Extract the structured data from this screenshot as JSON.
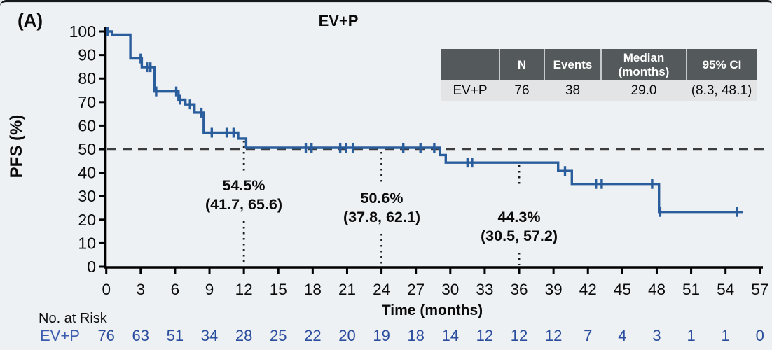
{
  "panel_label": "(A)",
  "title": "EV+P",
  "y_axis": {
    "label": "PFS (%)",
    "ticks": [
      "100",
      "90",
      "80",
      "70",
      "60",
      "50",
      "40",
      "30",
      "20",
      "10",
      "0"
    ]
  },
  "x_axis": {
    "label": "Time (months)",
    "ticks": [
      "0",
      "3",
      "6",
      "9",
      "12",
      "15",
      "18",
      "21",
      "24",
      "27",
      "30",
      "33",
      "36",
      "39",
      "42",
      "45",
      "48",
      "51",
      "54",
      "57"
    ]
  },
  "summary_table": {
    "headers": [
      "",
      "N",
      "Events",
      "Median (months)",
      "95% CI"
    ],
    "rows": [
      {
        "group": "EV+P",
        "n": "76",
        "events": "38",
        "median": "29.0",
        "ci": "(8.3, 48.1)"
      }
    ]
  },
  "annotations": [
    {
      "month": 12,
      "rate": "54.5%",
      "ci": "(41.7, 65.6)"
    },
    {
      "month": 24,
      "rate": "50.6%",
      "ci": "(37.8, 62.1)"
    },
    {
      "month": 36,
      "rate": "44.3%",
      "ci": "(30.5, 57.2)"
    }
  ],
  "at_risk": {
    "section_label": "No. at Risk",
    "group_label": "EV+P",
    "values": [
      "76",
      "63",
      "51",
      "34",
      "28",
      "25",
      "22",
      "20",
      "19",
      "18",
      "14",
      "12",
      "12",
      "12",
      "7",
      "4",
      "3",
      "1",
      "1",
      "0"
    ]
  },
  "colors": {
    "curve": "#2a5d9c",
    "at_risk_numbers": "#2b4d9e",
    "table_header_bg": "#54595b",
    "table_row_bg": "#e3e4e6",
    "reference_line": "#3d3d3d",
    "background": "#eef1f4"
  },
  "chart_data": {
    "type": "line",
    "subtype": "kaplan-meier-step",
    "title": "EV+P",
    "xlabel": "Time (months)",
    "ylabel": "PFS (%)",
    "xlim": [
      0,
      57
    ],
    "ylim": [
      0,
      100
    ],
    "x_tick_interval": 3,
    "reference_line_y": 50,
    "grid": false,
    "km_steps": [
      [
        0,
        100
      ],
      [
        0.5,
        98.7
      ],
      [
        2.1,
        88.5
      ],
      [
        3.1,
        84.8
      ],
      [
        4.2,
        74.5
      ],
      [
        6.3,
        71.0
      ],
      [
        6.9,
        69.0
      ],
      [
        7.7,
        65.5
      ],
      [
        8.5,
        57.0
      ],
      [
        11.5,
        54.5
      ],
      [
        12.2,
        50.6
      ],
      [
        29.1,
        47.5
      ],
      [
        29.6,
        44.3
      ],
      [
        39.4,
        40.7
      ],
      [
        40.6,
        35.2
      ],
      [
        48.2,
        23.3
      ],
      [
        55.5,
        23.3
      ]
    ],
    "censor_marks": [
      [
        0.1,
        100
      ],
      [
        3.0,
        88.5
      ],
      [
        3.55,
        84.8
      ],
      [
        3.85,
        84.8
      ],
      [
        4.35,
        74.5
      ],
      [
        6.1,
        74.5
      ],
      [
        6.45,
        71.0
      ],
      [
        7.3,
        69.0
      ],
      [
        8.3,
        65.5
      ],
      [
        9.2,
        57.0
      ],
      [
        10.5,
        57.0
      ],
      [
        11.1,
        57.0
      ],
      [
        17.4,
        50.6
      ],
      [
        17.9,
        50.6
      ],
      [
        20.4,
        50.6
      ],
      [
        20.9,
        50.6
      ],
      [
        21.5,
        50.6
      ],
      [
        25.9,
        50.6
      ],
      [
        27.4,
        50.6
      ],
      [
        28.6,
        50.6
      ],
      [
        31.5,
        44.3
      ],
      [
        31.9,
        44.3
      ],
      [
        40.0,
        40.7
      ],
      [
        42.7,
        35.2
      ],
      [
        43.2,
        35.2
      ],
      [
        47.6,
        35.2
      ],
      [
        48.3,
        23.3
      ],
      [
        55.0,
        23.3
      ]
    ],
    "milestone_estimates": [
      {
        "month": 12,
        "pfs_pct": 54.5,
        "ci_low": 41.7,
        "ci_high": 65.6
      },
      {
        "month": 24,
        "pfs_pct": 50.6,
        "ci_low": 37.8,
        "ci_high": 62.1
      },
      {
        "month": 36,
        "pfs_pct": 44.3,
        "ci_low": 30.5,
        "ci_high": 57.2
      }
    ],
    "series_summary": {
      "name": "EV+P",
      "n": 76,
      "events": 38,
      "median_months": 29.0,
      "ci_95": [
        8.3,
        48.1
      ]
    }
  }
}
